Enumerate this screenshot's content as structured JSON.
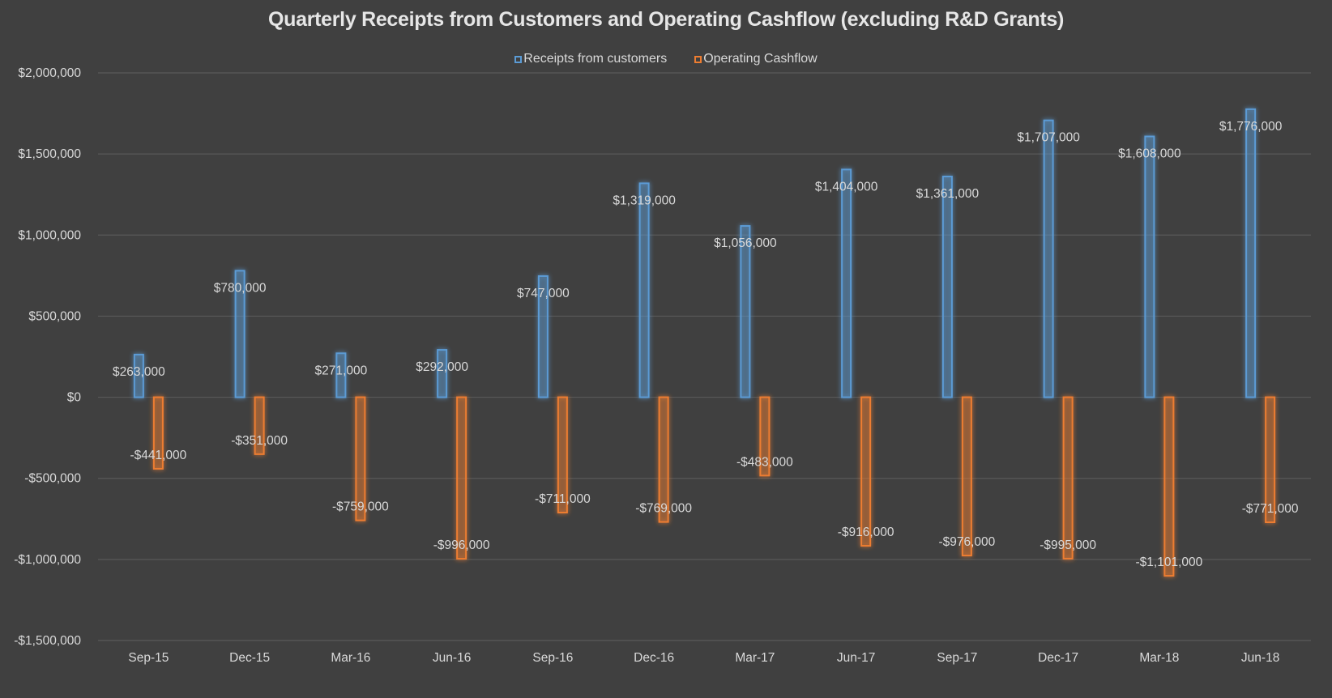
{
  "chart_data": {
    "type": "bar",
    "title": "Quarterly Receipts from Customers and Operating Cashflow (excluding R&D Grants)",
    "xlabel": "",
    "ylabel": "",
    "categories": [
      "Sep-15",
      "Dec-15",
      "Mar-16",
      "Jun-16",
      "Sep-16",
      "Dec-16",
      "Mar-17",
      "Jun-17",
      "Sep-17",
      "Dec-17",
      "Mar-18",
      "Jun-18"
    ],
    "series": [
      {
        "name": "Receipts from customers",
        "color": "#5b9bd5",
        "values": [
          263000,
          780000,
          271000,
          292000,
          747000,
          1319000,
          1056000,
          1404000,
          1361000,
          1707000,
          1608000,
          1776000
        ],
        "labels": [
          "$263,000",
          "$780,000",
          "$271,000",
          "$292,000",
          "$747,000",
          "$1,319,000",
          "$1,056,000",
          "$1,404,000",
          "$1,361,000",
          "$1,707,000",
          "$1,608,000",
          "$1,776,000"
        ]
      },
      {
        "name": "Operating Cashflow",
        "color": "#ed7d31",
        "values": [
          -441000,
          -351000,
          -759000,
          -996000,
          -711000,
          -769000,
          -483000,
          -916000,
          -976000,
          -995000,
          -1101000,
          -771000
        ],
        "labels": [
          "-$441,000",
          "-$351,000",
          "-$759,000",
          "-$996,000",
          "-$711,000",
          "-$769,000",
          "-$483,000",
          "-$916,000",
          "-$976,000",
          "-$995,000",
          "-$1,101,000",
          "-$771,000"
        ]
      }
    ],
    "ylim": [
      -1500000,
      2000000
    ],
    "yticks": [
      2000000,
      1500000,
      1000000,
      500000,
      0,
      -500000,
      -1000000,
      -1500000
    ],
    "ytick_labels": [
      "$2,000,000",
      "$1,500,000",
      "$1,000,000",
      "$500,000",
      "$0",
      "-$500,000",
      "-$1,000,000",
      "-$1,500,000"
    ],
    "grid": true,
    "legend_position": "top-center",
    "background": "#404040"
  }
}
